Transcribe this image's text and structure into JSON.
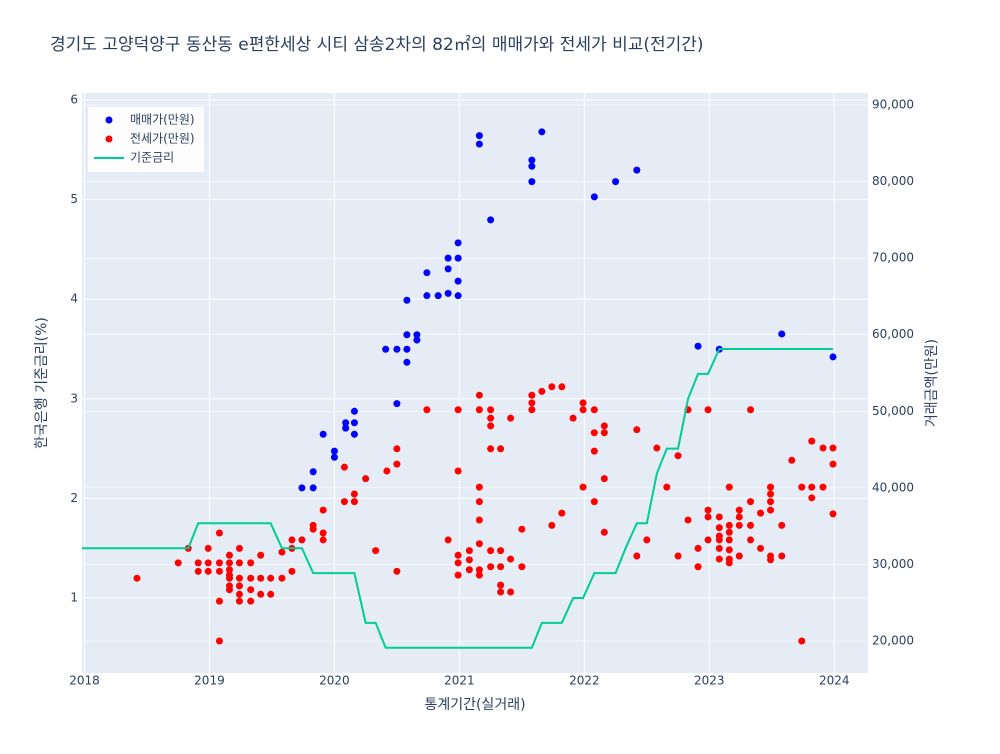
{
  "chart_data": {
    "type": "scatter",
    "title": "경기도 고양덕양구 동산동 e편한세상 시티 삼송2차의 82㎡의 매매가와 전세가 비교(전기간)",
    "x_label": "통계기간(실거래)",
    "y_label": "한국은행 기준금리(%)",
    "y2_label": "거래금액(만원)",
    "xlim": [
      2017.98,
      2024.27
    ],
    "xticks": [
      2018,
      2019,
      2020,
      2021,
      2022,
      2023,
      2024
    ],
    "ylim": [
      0.247,
      6.07
    ],
    "yticks": [
      1,
      2,
      3,
      4,
      5,
      6
    ],
    "y2lim": [
      15820,
      91570
    ],
    "y2ticks": [
      {
        "value": 20000,
        "label": "20,000"
      },
      {
        "value": 30000,
        "label": "30,000"
      },
      {
        "value": 40000,
        "label": "40,000"
      },
      {
        "value": 50000,
        "label": "50,000"
      },
      {
        "value": 60000,
        "label": "60,000"
      },
      {
        "value": 70000,
        "label": "70,000"
      },
      {
        "value": 80000,
        "label": "80,000"
      },
      {
        "value": 90000,
        "label": "90,000"
      }
    ],
    "grid": true,
    "legend": "top-left",
    "series": [
      {
        "name": "매매가(만원)",
        "color": "#0000ff",
        "type": "scatter",
        "axis": "y2",
        "x": [
          2019.74,
          2019.83,
          2019.83,
          2019.91,
          2020.0,
          2020.0,
          2020.09,
          2020.09,
          2020.16,
          2020.16,
          2020.16,
          2020.41,
          2020.5,
          2020.5,
          2020.58,
          2020.58,
          2020.58,
          2020.58,
          2020.66,
          2020.66,
          2020.74,
          2020.74,
          2020.83,
          2020.91,
          2020.91,
          2020.91,
          2020.99,
          2020.99,
          2020.99,
          2020.99,
          2021.16,
          2021.16,
          2021.25,
          2021.58,
          2021.58,
          2021.58,
          2021.66,
          2022.08,
          2022.25,
          2022.42,
          2022.91,
          2023.08,
          2023.58,
          2023.99
        ],
        "values": [
          40000,
          42100,
          40000,
          47000,
          44800,
          44000,
          48500,
          47800,
          50000,
          48500,
          47000,
          58100,
          58100,
          51000,
          64500,
          60000,
          58100,
          56400,
          60000,
          59300,
          68100,
          65100,
          65100,
          68600,
          70000,
          65400,
          70000,
          72000,
          67000,
          65100,
          86000,
          84900,
          75000,
          82800,
          82000,
          80000,
          86500,
          78000,
          80000,
          81500,
          58500,
          58100,
          60100,
          57100
        ]
      },
      {
        "name": "전세가(만원)",
        "color": "#ff0000",
        "type": "scatter",
        "axis": "y2",
        "x": [
          2018.42,
          2018.75,
          2018.83,
          2018.91,
          2018.91,
          2018.99,
          2018.99,
          2018.99,
          2019.08,
          2019.08,
          2019.08,
          2019.08,
          2019.08,
          2019.16,
          2019.16,
          2019.16,
          2019.16,
          2019.16,
          2019.16,
          2019.16,
          2019.24,
          2019.24,
          2019.24,
          2019.24,
          2019.24,
          2019.24,
          2019.33,
          2019.33,
          2019.33,
          2019.33,
          2019.41,
          2019.41,
          2019.41,
          2019.49,
          2019.49,
          2019.58,
          2019.58,
          2019.66,
          2019.66,
          2019.66,
          2019.74,
          2019.83,
          2019.83,
          2019.91,
          2019.91,
          2019.91,
          2020.08,
          2020.08,
          2020.16,
          2020.16,
          2020.25,
          2020.33,
          2020.42,
          2020.5,
          2020.5,
          2020.5,
          2020.74,
          2020.91,
          2020.99,
          2020.99,
          2020.99,
          2020.99,
          2020.99,
          2021.08,
          2021.08,
          2021.08,
          2021.16,
          2021.16,
          2021.16,
          2021.16,
          2021.16,
          2021.16,
          2021.16,
          2021.16,
          2021.25,
          2021.25,
          2021.25,
          2021.25,
          2021.25,
          2021.25,
          2021.33,
          2021.33,
          2021.33,
          2021.33,
          2021.33,
          2021.41,
          2021.41,
          2021.41,
          2021.5,
          2021.5,
          2021.58,
          2021.58,
          2021.58,
          2021.66,
          2021.74,
          2021.74,
          2021.82,
          2021.82,
          2021.91,
          2021.99,
          2021.99,
          2021.99,
          2022.08,
          2022.08,
          2022.08,
          2022.08,
          2022.16,
          2022.16,
          2022.16,
          2022.16,
          2022.42,
          2022.42,
          2022.5,
          2022.58,
          2022.66,
          2022.75,
          2022.75,
          2022.83,
          2022.83,
          2022.91,
          2022.91,
          2022.99,
          2022.99,
          2022.99,
          2022.99,
          2023.08,
          2023.08,
          2023.08,
          2023.08,
          2023.08,
          2023.08,
          2023.16,
          2023.16,
          2023.16,
          2023.16,
          2023.16,
          2023.16,
          2023.16,
          2023.24,
          2023.24,
          2023.24,
          2023.24,
          2023.33,
          2023.33,
          2023.33,
          2023.33,
          2023.41,
          2023.41,
          2023.49,
          2023.49,
          2023.49,
          2023.49,
          2023.49,
          2023.49,
          2023.58,
          2023.58,
          2023.66,
          2023.74,
          2023.74,
          2023.82,
          2023.82,
          2023.82,
          2023.91,
          2023.91,
          2023.99,
          2023.99,
          2023.99
        ],
        "values": [
          28200,
          30200,
          32100,
          30200,
          29100,
          32100,
          30200,
          29100,
          34100,
          30200,
          29100,
          25200,
          20000,
          31200,
          30200,
          29300,
          28600,
          28200,
          27200,
          26700,
          32100,
          30200,
          28200,
          27200,
          26100,
          25200,
          30200,
          28200,
          26700,
          25200,
          31200,
          28200,
          26100,
          28200,
          26100,
          31600,
          28200,
          32100,
          33200,
          29100,
          33200,
          35100,
          34600,
          37100,
          34100,
          33200,
          42700,
          38200,
          39200,
          38200,
          41200,
          31800,
          42200,
          45100,
          43100,
          29100,
          50200,
          33200,
          50200,
          42200,
          31200,
          30200,
          28600,
          31800,
          30600,
          29300,
          52100,
          50200,
          40100,
          38200,
          35800,
          32700,
          29300,
          28600,
          50200,
          49100,
          48100,
          45100,
          31800,
          29700,
          45100,
          31800,
          29700,
          27300,
          26400,
          49100,
          30700,
          26400,
          34600,
          29700,
          52100,
          51100,
          50200,
          52600,
          53200,
          35100,
          53200,
          36700,
          49100,
          51100,
          50200,
          40100,
          50200,
          47200,
          44800,
          38200,
          48100,
          47200,
          41200,
          34200,
          47600,
          31100,
          33200,
          45200,
          40100,
          44200,
          31100,
          50200,
          35800,
          32100,
          29700,
          50200,
          37100,
          36200,
          33200,
          36200,
          34800,
          33700,
          33200,
          32100,
          30700,
          40100,
          35100,
          34200,
          33200,
          31900,
          30700,
          30200,
          37100,
          36200,
          35100,
          31100,
          50200,
          38200,
          35100,
          33200,
          36700,
          32100,
          40100,
          39200,
          38200,
          37100,
          31100,
          30600,
          35100,
          31100,
          43600,
          40100,
          20000,
          46100,
          40100,
          38700,
          45200,
          40100,
          45200,
          43100,
          36600
        ]
      },
      {
        "name": "기준금리",
        "color": "#00cc96",
        "type": "line",
        "x": [
          2017.98,
          2018.83,
          2018.91,
          2019.49,
          2019.58,
          2019.74,
          2019.83,
          2020.16,
          2020.25,
          2020.33,
          2020.41,
          2021.58,
          2021.66,
          2021.82,
          2021.91,
          2021.99,
          2022.08,
          2022.25,
          2022.33,
          2022.42,
          2022.5,
          2022.58,
          2022.66,
          2022.75,
          2022.83,
          2022.91,
          2022.99,
          2023.08,
          2023.99
        ],
        "values": [
          1.5,
          1.5,
          1.75,
          1.75,
          1.5,
          1.5,
          1.25,
          1.25,
          0.75,
          0.75,
          0.5,
          0.5,
          0.75,
          0.75,
          1.0,
          1.0,
          1.25,
          1.25,
          1.5,
          1.75,
          1.75,
          2.25,
          2.5,
          2.5,
          3.0,
          3.25,
          3.25,
          3.5,
          3.5
        ]
      }
    ]
  }
}
